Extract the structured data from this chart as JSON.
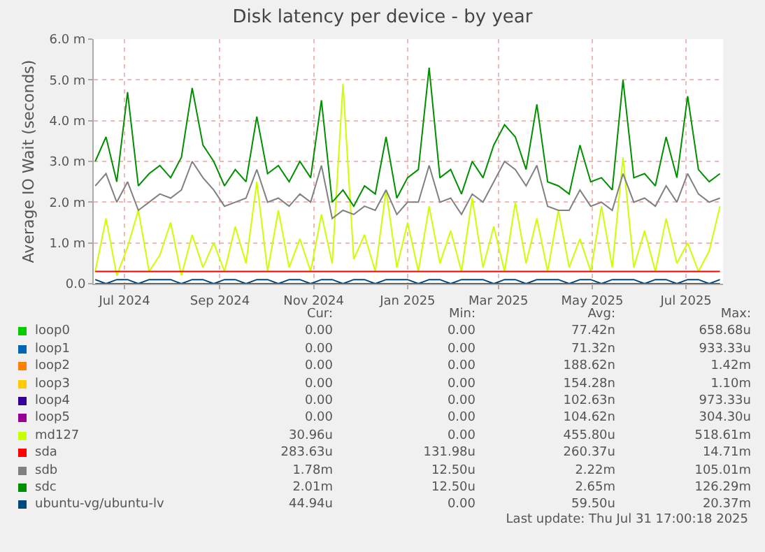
{
  "chart_data": {
    "type": "line",
    "title": "Disk latency per device - by year",
    "ylabel": "Average IO Wait (seconds)",
    "x": [
      "2024-06-12",
      "2024-06-19",
      "2024-06-26",
      "2024-07-03",
      "2024-07-10",
      "2024-07-17",
      "2024-07-24",
      "2024-07-31",
      "2024-08-07",
      "2024-08-14",
      "2024-08-21",
      "2024-08-28",
      "2024-09-04",
      "2024-09-11",
      "2024-09-18",
      "2024-09-25",
      "2024-10-02",
      "2024-10-09",
      "2024-10-16",
      "2024-10-23",
      "2024-10-30",
      "2024-11-06",
      "2024-11-13",
      "2024-11-20",
      "2024-11-27",
      "2024-12-04",
      "2024-12-11",
      "2024-12-18",
      "2024-12-25",
      "2025-01-01",
      "2025-01-08",
      "2025-01-15",
      "2025-01-22",
      "2025-01-29",
      "2025-02-05",
      "2025-02-12",
      "2025-02-19",
      "2025-02-26",
      "2025-03-05",
      "2025-03-12",
      "2025-03-19",
      "2025-03-26",
      "2025-04-02",
      "2025-04-09",
      "2025-04-16",
      "2025-04-23",
      "2025-04-30",
      "2025-05-07",
      "2025-05-14",
      "2025-05-21",
      "2025-05-28",
      "2025-06-04",
      "2025-06-11",
      "2025-06-18",
      "2025-06-25",
      "2025-07-02",
      "2025-07-09",
      "2025-07-16",
      "2025-07-23"
    ],
    "xlim": [
      "2024-06-11",
      "2025-07-25"
    ],
    "xticks": [
      {
        "value": "2024-07-01",
        "label": "Jul 2024"
      },
      {
        "value": "2024-09-01",
        "label": "Sep 2024"
      },
      {
        "value": "2024-11-01",
        "label": "Nov 2024"
      },
      {
        "value": "2025-01-01",
        "label": "Jan 2025"
      },
      {
        "value": "2025-03-01",
        "label": "Mar 2025"
      },
      {
        "value": "2025-05-01",
        "label": "May 2025"
      },
      {
        "value": "2025-07-01",
        "label": "Jul 2025"
      }
    ],
    "ylim": [
      0,
      6
    ],
    "yticks": [
      {
        "value": 0,
        "label": "0.0"
      },
      {
        "value": 1,
        "label": "1.0 m"
      },
      {
        "value": 2,
        "label": "2.0 m"
      },
      {
        "value": 3,
        "label": "3.0 m"
      },
      {
        "value": 4,
        "label": "4.0 m"
      },
      {
        "value": 5,
        "label": "5.0 m"
      },
      {
        "value": 6,
        "label": "6.0 m"
      }
    ],
    "grid": true,
    "legend": "bottom",
    "series": [
      {
        "name": "loop0",
        "color": "#00cc00",
        "values": [
          null,
          null,
          null,
          null,
          null,
          null,
          null,
          null,
          null,
          null,
          null,
          null,
          null,
          null,
          null,
          null,
          null,
          null,
          null,
          null,
          null,
          null,
          null,
          null,
          null,
          null,
          null,
          null,
          null,
          null,
          null,
          null,
          null,
          null,
          null,
          null,
          null,
          null,
          null,
          null,
          null,
          null,
          null,
          null,
          null,
          null,
          null,
          null,
          null,
          null,
          null,
          null,
          null,
          null,
          null,
          null,
          null,
          null,
          null
        ]
      },
      {
        "name": "loop1",
        "color": "#0066b3",
        "values": [
          null,
          null,
          null,
          null,
          null,
          null,
          null,
          null,
          null,
          null,
          null,
          null,
          null,
          null,
          null,
          null,
          null,
          null,
          null,
          null,
          null,
          null,
          null,
          null,
          null,
          null,
          null,
          null,
          null,
          null,
          null,
          null,
          null,
          null,
          null,
          null,
          null,
          null,
          null,
          null,
          null,
          null,
          null,
          null,
          null,
          null,
          null,
          null,
          null,
          null,
          null,
          null,
          null,
          null,
          null,
          null,
          null,
          null,
          null
        ]
      },
      {
        "name": "loop2",
        "color": "#ff8000",
        "values": [
          null,
          null,
          null,
          null,
          null,
          null,
          null,
          null,
          null,
          null,
          null,
          null,
          null,
          null,
          null,
          null,
          null,
          null,
          null,
          null,
          null,
          null,
          null,
          null,
          null,
          null,
          null,
          null,
          null,
          null,
          null,
          null,
          null,
          null,
          null,
          null,
          null,
          null,
          null,
          null,
          null,
          null,
          null,
          null,
          null,
          null,
          null,
          null,
          null,
          null,
          null,
          null,
          null,
          null,
          null,
          null,
          null,
          null,
          null
        ]
      },
      {
        "name": "loop3",
        "color": "#ffcc00",
        "values": [
          null,
          null,
          null,
          null,
          null,
          null,
          null,
          null,
          null,
          null,
          null,
          null,
          null,
          null,
          null,
          null,
          null,
          null,
          null,
          null,
          null,
          null,
          null,
          null,
          null,
          null,
          null,
          null,
          null,
          null,
          null,
          null,
          null,
          null,
          null,
          null,
          null,
          null,
          null,
          null,
          null,
          null,
          null,
          null,
          null,
          null,
          null,
          null,
          null,
          null,
          null,
          null,
          null,
          null,
          null,
          null,
          null,
          null,
          null
        ]
      },
      {
        "name": "loop4",
        "color": "#330099",
        "values": [
          null,
          null,
          null,
          null,
          null,
          null,
          null,
          null,
          null,
          null,
          null,
          null,
          null,
          null,
          null,
          null,
          null,
          null,
          null,
          null,
          null,
          null,
          null,
          null,
          null,
          null,
          null,
          null,
          null,
          null,
          null,
          null,
          null,
          null,
          null,
          null,
          null,
          null,
          null,
          null,
          null,
          null,
          null,
          null,
          null,
          null,
          null,
          null,
          null,
          null,
          null,
          null,
          null,
          null,
          null,
          null,
          null,
          null,
          null
        ]
      },
      {
        "name": "loop5",
        "color": "#990099",
        "values": [
          0,
          0,
          0,
          0,
          0,
          0,
          0,
          0,
          0,
          0,
          0,
          0,
          0,
          0,
          0,
          0,
          0,
          0,
          0,
          0,
          0,
          0,
          0,
          0,
          0,
          0,
          0,
          0,
          0,
          0,
          0,
          0,
          0,
          0,
          0,
          0,
          0,
          0,
          0,
          0,
          0,
          0,
          0,
          0,
          0,
          0,
          0,
          0,
          0,
          0,
          0,
          0,
          0,
          0,
          0,
          0,
          0,
          0,
          0
        ]
      },
      {
        "name": "md127",
        "color": "#ccff00",
        "values": [
          0.3,
          1.6,
          0.2,
          0.9,
          1.8,
          0.3,
          0.7,
          1.5,
          0.2,
          1.2,
          0.4,
          1.0,
          0.3,
          1.4,
          0.5,
          2.5,
          0.3,
          1.8,
          0.4,
          1.1,
          0.3,
          1.7,
          0.5,
          4.9,
          0.6,
          1.2,
          0.3,
          2.3,
          0.4,
          1.5,
          0.3,
          1.9,
          0.5,
          1.3,
          0.3,
          2.1,
          0.4,
          1.4,
          0.3,
          2.0,
          0.5,
          1.6,
          0.3,
          1.8,
          0.4,
          1.1,
          0.3,
          1.9,
          0.4,
          3.1,
          0.4,
          1.3,
          0.3,
          1.6,
          0.5,
          1.0,
          0.3,
          0.8,
          1.9
        ]
      },
      {
        "name": "sda",
        "color": "#ff0000",
        "values": [
          0.3,
          0.3,
          0.3,
          0.3,
          0.3,
          0.3,
          0.3,
          0.3,
          0.3,
          0.3,
          0.3,
          0.3,
          0.3,
          0.3,
          0.3,
          0.3,
          0.3,
          0.3,
          0.3,
          0.3,
          0.3,
          0.3,
          0.3,
          0.3,
          0.3,
          0.3,
          0.3,
          0.3,
          0.3,
          0.3,
          0.3,
          0.3,
          0.3,
          0.3,
          0.3,
          0.3,
          0.3,
          0.3,
          0.3,
          0.3,
          0.3,
          0.3,
          0.3,
          0.3,
          0.3,
          0.3,
          0.3,
          0.3,
          0.3,
          0.3,
          0.3,
          0.3,
          0.3,
          0.3,
          0.3,
          0.3,
          0.3,
          0.3,
          0.3
        ]
      },
      {
        "name": "sdb",
        "color": "#808080",
        "values": [
          2.4,
          2.7,
          2.0,
          2.5,
          1.8,
          2.0,
          2.2,
          2.1,
          2.3,
          3.0,
          2.6,
          2.3,
          1.9,
          2.0,
          2.1,
          2.8,
          2.0,
          2.1,
          1.9,
          2.2,
          2.0,
          2.9,
          1.6,
          1.8,
          1.7,
          1.9,
          1.8,
          2.3,
          1.7,
          2.0,
          2.0,
          2.9,
          2.0,
          2.1,
          1.7,
          2.2,
          2.0,
          2.5,
          3.0,
          2.8,
          2.4,
          2.9,
          1.9,
          1.8,
          1.8,
          2.3,
          1.9,
          2.0,
          1.8,
          2.7,
          2.0,
          2.1,
          1.9,
          2.4,
          2.0,
          2.7,
          2.2,
          2.0,
          2.1
        ]
      },
      {
        "name": "sdc",
        "color": "#008f00",
        "values": [
          3.0,
          3.6,
          2.5,
          4.7,
          2.4,
          2.7,
          2.9,
          2.6,
          3.1,
          4.8,
          3.4,
          3.0,
          2.4,
          2.8,
          2.5,
          4.1,
          2.7,
          2.9,
          2.5,
          3.0,
          2.6,
          4.5,
          2.0,
          2.3,
          1.9,
          2.4,
          2.2,
          3.6,
          2.1,
          2.6,
          2.8,
          5.3,
          2.6,
          2.8,
          2.2,
          3.0,
          2.6,
          3.4,
          3.9,
          3.6,
          2.8,
          4.4,
          2.5,
          2.4,
          2.2,
          3.4,
          2.5,
          2.6,
          2.3,
          5.0,
          2.6,
          2.7,
          2.4,
          3.6,
          2.6,
          4.6,
          2.8,
          2.5,
          2.7
        ]
      },
      {
        "name": "ubuntu-vg/ubuntu-lv",
        "color": "#00487d",
        "values": [
          0.1,
          0,
          0.1,
          0.1,
          0,
          0.1,
          0.1,
          0.1,
          0,
          0.1,
          0.1,
          0,
          0.1,
          0.1,
          0,
          0.1,
          0.1,
          0,
          0.1,
          0.1,
          0,
          0.1,
          0.1,
          0,
          0.1,
          0.1,
          0,
          0.1,
          0.1,
          0.1,
          0,
          0.1,
          0.1,
          0,
          0.1,
          0.1,
          0.1,
          0,
          0.1,
          0.1,
          0,
          0.1,
          0.1,
          0.1,
          0,
          0.1,
          0.1,
          0,
          0.1,
          0.1,
          0.1,
          0,
          0.1,
          0.1,
          0,
          0.1,
          0.1,
          0,
          0.1
        ]
      }
    ],
    "annotations": [
      "Cur:",
      "Min:",
      "Avg:",
      "Max:",
      "0.00",
      "0.00",
      "77.42n",
      "658.68u",
      "0.00",
      "0.00",
      "71.32n",
      "933.33u",
      "0.00",
      "0.00",
      "188.62n",
      "1.42m",
      "0.00",
      "0.00",
      "154.28n",
      "1.10m",
      "0.00",
      "0.00",
      "102.63n",
      "973.33u",
      "0.00",
      "0.00",
      "104.62n",
      "304.30u",
      "30.96u",
      "0.00",
      "455.80u",
      "518.61m",
      "283.63u",
      "131.98u",
      "260.37u",
      "14.71m",
      "1.78m",
      "12.50u",
      "2.22m",
      "105.01m",
      "2.01m",
      "12.50u",
      "2.65m",
      "126.29m",
      "44.94u",
      "0.00",
      "59.50u",
      "20.37m",
      "Last update: Thu Jul 31 17:00:18 2025"
    ]
  }
}
